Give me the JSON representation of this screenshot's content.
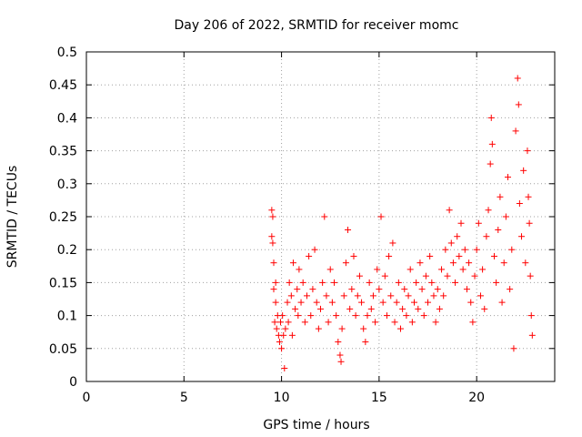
{
  "chart_data": {
    "type": "scatter",
    "title": "Day 206 of 2022, SRMTID for receiver momc",
    "xlabel": "GPS time / hours",
    "ylabel": "SRMTID / TECUs",
    "xlim": [
      0,
      24
    ],
    "ylim": [
      0,
      0.5
    ],
    "grid": true,
    "x_ticks": [
      0,
      5,
      10,
      15,
      20
    ],
    "x_tick_labels": [
      "0",
      "5",
      "10",
      "15",
      "20"
    ],
    "y_ticks": [
      0,
      0.05,
      0.1,
      0.15,
      0.2,
      0.25,
      0.3,
      0.35,
      0.4,
      0.45,
      0.5
    ],
    "y_tick_labels": [
      "0",
      "0.05",
      "0.1",
      "0.15",
      "0.2",
      "0.25",
      "0.3",
      "0.35",
      "0.4",
      "0.45",
      "0.5"
    ],
    "marker": "+",
    "color": "#ff0000",
    "series": [
      {
        "name": "SRMTID",
        "points": [
          [
            9.5,
            0.26
          ],
          [
            9.5,
            0.22
          ],
          [
            9.55,
            0.25
          ],
          [
            9.55,
            0.21
          ],
          [
            9.6,
            0.14
          ],
          [
            9.6,
            0.18
          ],
          [
            9.65,
            0.09
          ],
          [
            9.7,
            0.15
          ],
          [
            9.7,
            0.12
          ],
          [
            9.75,
            0.08
          ],
          [
            9.8,
            0.1
          ],
          [
            9.85,
            0.07
          ],
          [
            9.9,
            0.06
          ],
          [
            9.95,
            0.09
          ],
          [
            10.0,
            0.05
          ],
          [
            10.05,
            0.1
          ],
          [
            10.1,
            0.07
          ],
          [
            10.15,
            0.02
          ],
          [
            10.2,
            0.08
          ],
          [
            10.3,
            0.12
          ],
          [
            10.35,
            0.09
          ],
          [
            10.4,
            0.15
          ],
          [
            10.5,
            0.13
          ],
          [
            10.55,
            0.07
          ],
          [
            10.6,
            0.18
          ],
          [
            10.7,
            0.11
          ],
          [
            10.8,
            0.14
          ],
          [
            10.85,
            0.1
          ],
          [
            10.9,
            0.17
          ],
          [
            11.0,
            0.12
          ],
          [
            11.1,
            0.15
          ],
          [
            11.2,
            0.09
          ],
          [
            11.3,
            0.13
          ],
          [
            11.4,
            0.19
          ],
          [
            11.5,
            0.1
          ],
          [
            11.6,
            0.14
          ],
          [
            11.7,
            0.2
          ],
          [
            11.8,
            0.12
          ],
          [
            11.9,
            0.08
          ],
          [
            12.0,
            0.11
          ],
          [
            12.1,
            0.15
          ],
          [
            12.2,
            0.25
          ],
          [
            12.3,
            0.13
          ],
          [
            12.4,
            0.09
          ],
          [
            12.5,
            0.17
          ],
          [
            12.6,
            0.12
          ],
          [
            12.7,
            0.15
          ],
          [
            12.8,
            0.1
          ],
          [
            12.9,
            0.06
          ],
          [
            13.0,
            0.04
          ],
          [
            13.05,
            0.03
          ],
          [
            13.1,
            0.08
          ],
          [
            13.2,
            0.13
          ],
          [
            13.3,
            0.18
          ],
          [
            13.4,
            0.23
          ],
          [
            13.5,
            0.11
          ],
          [
            13.6,
            0.14
          ],
          [
            13.7,
            0.19
          ],
          [
            13.8,
            0.1
          ],
          [
            13.9,
            0.13
          ],
          [
            14.0,
            0.16
          ],
          [
            14.1,
            0.12
          ],
          [
            14.2,
            0.08
          ],
          [
            14.3,
            0.06
          ],
          [
            14.4,
            0.1
          ],
          [
            14.5,
            0.15
          ],
          [
            14.6,
            0.11
          ],
          [
            14.7,
            0.13
          ],
          [
            14.8,
            0.09
          ],
          [
            14.9,
            0.17
          ],
          [
            15.0,
            0.14
          ],
          [
            15.1,
            0.25
          ],
          [
            15.2,
            0.12
          ],
          [
            15.3,
            0.16
          ],
          [
            15.4,
            0.1
          ],
          [
            15.5,
            0.19
          ],
          [
            15.6,
            0.13
          ],
          [
            15.7,
            0.21
          ],
          [
            15.8,
            0.09
          ],
          [
            15.9,
            0.12
          ],
          [
            16.0,
            0.15
          ],
          [
            16.1,
            0.08
          ],
          [
            16.2,
            0.11
          ],
          [
            16.3,
            0.14
          ],
          [
            16.4,
            0.1
          ],
          [
            16.5,
            0.13
          ],
          [
            16.6,
            0.17
          ],
          [
            16.7,
            0.09
          ],
          [
            16.8,
            0.12
          ],
          [
            16.9,
            0.15
          ],
          [
            17.0,
            0.11
          ],
          [
            17.1,
            0.18
          ],
          [
            17.2,
            0.14
          ],
          [
            17.3,
            0.1
          ],
          [
            17.4,
            0.16
          ],
          [
            17.5,
            0.12
          ],
          [
            17.6,
            0.19
          ],
          [
            17.7,
            0.15
          ],
          [
            17.8,
            0.13
          ],
          [
            17.9,
            0.09
          ],
          [
            18.0,
            0.14
          ],
          [
            18.1,
            0.11
          ],
          [
            18.2,
            0.17
          ],
          [
            18.3,
            0.13
          ],
          [
            18.4,
            0.2
          ],
          [
            18.5,
            0.16
          ],
          [
            18.6,
            0.26
          ],
          [
            18.7,
            0.21
          ],
          [
            18.8,
            0.18
          ],
          [
            18.9,
            0.15
          ],
          [
            19.0,
            0.22
          ],
          [
            19.1,
            0.19
          ],
          [
            19.2,
            0.24
          ],
          [
            19.3,
            0.17
          ],
          [
            19.4,
            0.2
          ],
          [
            19.5,
            0.14
          ],
          [
            19.6,
            0.18
          ],
          [
            19.7,
            0.12
          ],
          [
            19.8,
            0.09
          ],
          [
            19.9,
            0.16
          ],
          [
            20.0,
            0.2
          ],
          [
            20.1,
            0.24
          ],
          [
            20.2,
            0.13
          ],
          [
            20.3,
            0.17
          ],
          [
            20.4,
            0.11
          ],
          [
            20.5,
            0.22
          ],
          [
            20.6,
            0.26
          ],
          [
            20.7,
            0.33
          ],
          [
            20.75,
            0.4
          ],
          [
            20.8,
            0.36
          ],
          [
            20.9,
            0.19
          ],
          [
            21.0,
            0.15
          ],
          [
            21.1,
            0.23
          ],
          [
            21.2,
            0.28
          ],
          [
            21.3,
            0.12
          ],
          [
            21.4,
            0.18
          ],
          [
            21.5,
            0.25
          ],
          [
            21.6,
            0.31
          ],
          [
            21.7,
            0.14
          ],
          [
            21.8,
            0.2
          ],
          [
            21.9,
            0.05
          ],
          [
            22.0,
            0.38
          ],
          [
            22.1,
            0.46
          ],
          [
            22.15,
            0.42
          ],
          [
            22.2,
            0.27
          ],
          [
            22.3,
            0.22
          ],
          [
            22.4,
            0.32
          ],
          [
            22.5,
            0.18
          ],
          [
            22.6,
            0.35
          ],
          [
            22.65,
            0.28
          ],
          [
            22.7,
            0.24
          ],
          [
            22.75,
            0.16
          ],
          [
            22.8,
            0.1
          ],
          [
            22.85,
            0.07
          ]
        ]
      }
    ]
  }
}
